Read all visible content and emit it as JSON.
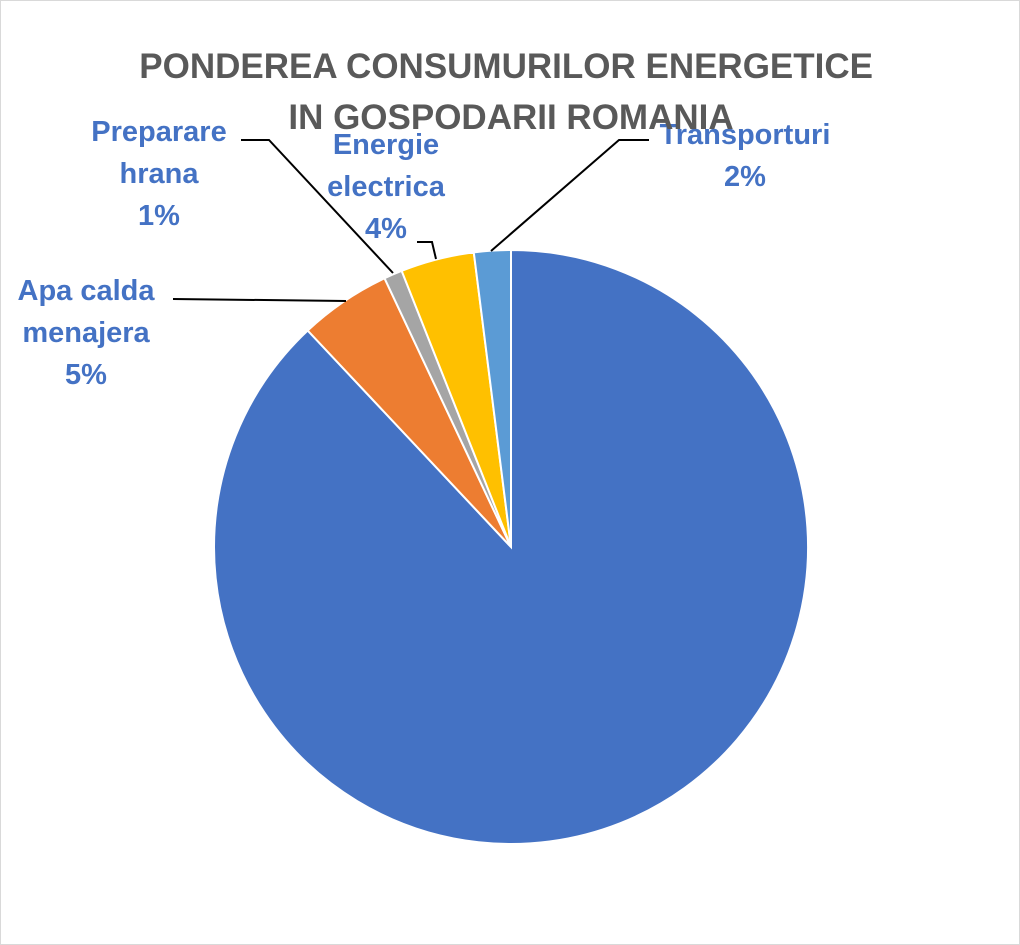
{
  "chart_data": {
    "type": "pie",
    "title_lines": [
      "PONDEREA CONSUMURILOR ENERGETICE",
      "IN GOSPODARII ROMANIA"
    ],
    "slices": [
      {
        "name": "",
        "value": 88,
        "color": "#4472C4",
        "label_lines": []
      },
      {
        "name": "Apa calda menajera",
        "value": 5,
        "color": "#ED7D31",
        "label_lines": [
          "Apa calda",
          "menajera",
          "5%"
        ]
      },
      {
        "name": "Preparare hrana",
        "value": 1,
        "color": "#A5A5A5",
        "label_lines": [
          "Preparare",
          "hrana",
          "1%"
        ]
      },
      {
        "name": "Energie electrica",
        "value": 4,
        "color": "#FFC000",
        "label_lines": [
          "Energie",
          "electrica",
          "4%"
        ]
      },
      {
        "name": "Transporturi",
        "value": 2,
        "color": "#5B9BD5",
        "label_lines": [
          "Transporturi",
          "2%"
        ]
      }
    ],
    "label_color": "#4472C4",
    "start_angle_deg": 0,
    "direction": "clockwise"
  }
}
